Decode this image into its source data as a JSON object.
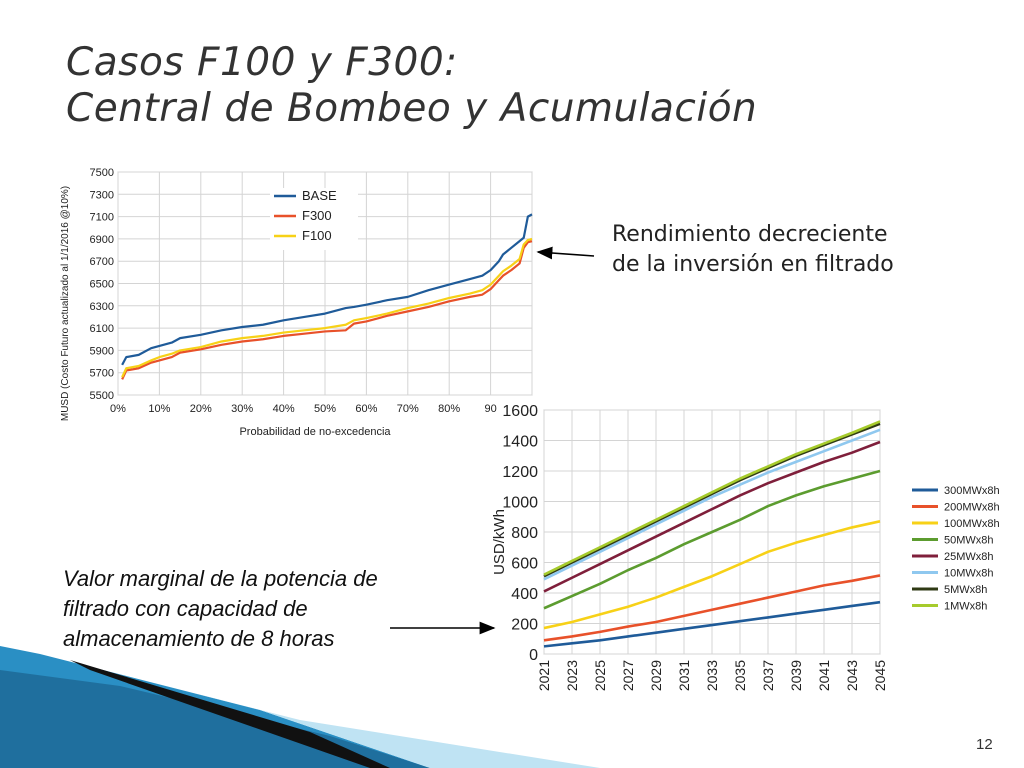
{
  "slide": {
    "title_line1": "Casos F100 y F300:",
    "title_line2": "Central de Bombeo y Acumulación",
    "callout_top": [
      "Rendimiento decreciente",
      "de la inversión en filtrado"
    ],
    "callout_bottom": [
      "Valor marginal de la potencia de",
      "filtrado con capacidad de",
      "almacenamiento de 8 horas"
    ],
    "page_number": "12"
  },
  "chart_data": [
    {
      "type": "line",
      "title": "",
      "xlabel": "Probabilidad de no-excedencia",
      "ylabel": "MUSD (Costo Futuro actualizado al 1/1/2016 @10%)",
      "xlim": [
        0,
        100
      ],
      "ylim": [
        5500,
        7500
      ],
      "x_ticks": [
        "0%",
        "10%",
        "20%",
        "30%",
        "40%",
        "50%",
        "60%",
        "70%",
        "80%",
        "90",
        ""
      ],
      "y_ticks": [
        "7500",
        "7300",
        "7100",
        "6900",
        "6700",
        "6500",
        "6300",
        "6100",
        "5900",
        "5700",
        "5500"
      ],
      "grid": true,
      "legend_position": "top-center",
      "x": [
        1,
        2,
        5,
        8,
        10,
        13,
        15,
        20,
        25,
        30,
        35,
        40,
        45,
        50,
        55,
        57,
        60,
        65,
        70,
        75,
        80,
        85,
        88,
        90,
        92,
        93,
        95,
        97,
        98,
        99,
        100
      ],
      "series": [
        {
          "name": "BASE",
          "color": "#1f5b99",
          "values": [
            5770,
            5840,
            5860,
            5920,
            5940,
            5970,
            6010,
            6040,
            6080,
            6110,
            6130,
            6170,
            6200,
            6230,
            6280,
            6290,
            6310,
            6350,
            6380,
            6440,
            6490,
            6540,
            6570,
            6620,
            6700,
            6760,
            6820,
            6880,
            6910,
            7100,
            7120
          ]
        },
        {
          "name": "F300",
          "color": "#e8512a",
          "values": [
            5640,
            5720,
            5740,
            5790,
            5810,
            5840,
            5880,
            5910,
            5950,
            5980,
            6000,
            6030,
            6050,
            6070,
            6080,
            6140,
            6160,
            6210,
            6250,
            6290,
            6340,
            6380,
            6400,
            6450,
            6530,
            6570,
            6620,
            6680,
            6820,
            6870,
            6880
          ]
        },
        {
          "name": "F100",
          "color": "#f7d117",
          "values": [
            5660,
            5740,
            5760,
            5810,
            5840,
            5870,
            5900,
            5930,
            5980,
            6010,
            6030,
            6060,
            6080,
            6100,
            6130,
            6170,
            6190,
            6230,
            6280,
            6320,
            6370,
            6410,
            6440,
            6490,
            6570,
            6610,
            6660,
            6720,
            6850,
            6890,
            6900
          ]
        }
      ]
    },
    {
      "type": "line",
      "title": "",
      "xlabel": "",
      "ylabel": "USD/kWh",
      "xlim": [
        2021,
        2045
      ],
      "ylim": [
        0,
        1600
      ],
      "x_ticks": [
        "2021",
        "2023",
        "2025",
        "2027",
        "2029",
        "2031",
        "2033",
        "2035",
        "2037",
        "2039",
        "2041",
        "2043",
        "2045"
      ],
      "y_ticks": [
        "1600",
        "1400",
        "1200",
        "1000",
        "800",
        "600",
        "400",
        "200",
        "0"
      ],
      "grid": true,
      "legend_position": "right",
      "x": [
        2021,
        2023,
        2025,
        2027,
        2029,
        2031,
        2033,
        2035,
        2037,
        2039,
        2041,
        2043,
        2045
      ],
      "series": [
        {
          "name": "300MWx8h",
          "color": "#1f5b99",
          "values": [
            50,
            70,
            90,
            115,
            140,
            165,
            190,
            215,
            240,
            265,
            290,
            315,
            340
          ]
        },
        {
          "name": "200MWx8h",
          "color": "#e8512a",
          "values": [
            90,
            115,
            145,
            180,
            210,
            250,
            290,
            330,
            370,
            410,
            450,
            480,
            515
          ]
        },
        {
          "name": "100MWx8h",
          "color": "#f7d117",
          "values": [
            170,
            210,
            260,
            310,
            370,
            440,
            510,
            590,
            670,
            730,
            780,
            830,
            870
          ]
        },
        {
          "name": "50MWx8h",
          "color": "#5c9c2f",
          "values": [
            300,
            380,
            460,
            550,
            630,
            720,
            800,
            880,
            970,
            1040,
            1100,
            1150,
            1200
          ]
        },
        {
          "name": "25MWx8h",
          "color": "#7f1f3b",
          "values": [
            410,
            500,
            590,
            680,
            770,
            860,
            950,
            1040,
            1120,
            1190,
            1260,
            1320,
            1390
          ]
        },
        {
          "name": "10MWx8h",
          "color": "#8fc8ef",
          "values": [
            490,
            580,
            670,
            760,
            850,
            940,
            1030,
            1110,
            1190,
            1260,
            1330,
            1400,
            1470
          ]
        },
        {
          "name": "5MWx8h",
          "color": "#2f3a14",
          "values": [
            510,
            600,
            690,
            780,
            870,
            960,
            1050,
            1140,
            1220,
            1300,
            1370,
            1440,
            1510
          ]
        },
        {
          "name": "1MWx8h",
          "color": "#a6cb2c",
          "values": [
            520,
            610,
            700,
            790,
            880,
            970,
            1060,
            1150,
            1230,
            1310,
            1380,
            1450,
            1525
          ]
        }
      ]
    }
  ]
}
